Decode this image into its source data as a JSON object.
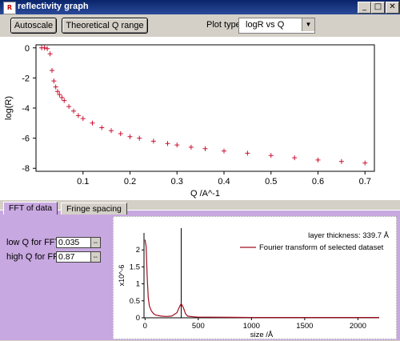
{
  "window": {
    "title": "reflectivity graph",
    "icon": "app-icon",
    "buttons": [
      "_",
      "□",
      "✕"
    ]
  },
  "toolbar": {
    "autoscale_label": "Autoscale",
    "theoretical_label": "Theoretical Q range",
    "plot_type_label": "Plot type",
    "plot_type_value": "logR vs Q"
  },
  "tabs": [
    {
      "label": "FFT of data",
      "selected": true
    },
    {
      "label": "Fringe spacing",
      "selected": false
    }
  ],
  "fft_controls": {
    "low_q_label": "low Q for FFT",
    "low_q_value": "0.035",
    "high_q_label": "high Q for FFT",
    "high_q_value": "0.87"
  },
  "colors": {
    "data": "#cc1030",
    "accent_tab": "#c8a8e0",
    "titlebar": "#0a246a"
  },
  "chart_data": [
    {
      "type": "scatter",
      "title": "",
      "xlabel": "Q /A^-1",
      "ylabel": "log(R)",
      "xlim": [
        0.0,
        0.72
      ],
      "ylim": [
        -8.2,
        0.2
      ],
      "x_ticks": [
        "0.1",
        "0.2",
        "0.3",
        "0.4",
        "0.5",
        "0.6",
        "0.7"
      ],
      "y_ticks": [
        "0",
        "-2",
        "-4",
        "-6",
        "-8"
      ],
      "marker": "+",
      "series": [
        {
          "x": [
            0.012,
            0.018,
            0.024,
            0.03,
            0.034,
            0.038,
            0.042,
            0.046,
            0.05,
            0.055,
            0.06,
            0.07,
            0.08,
            0.09,
            0.1,
            0.12,
            0.14,
            0.16,
            0.18,
            0.2,
            0.22,
            0.25,
            0.28,
            0.3,
            0.33,
            0.36,
            0.4,
            0.45,
            0.5,
            0.55,
            0.6,
            0.65,
            0.7
          ],
          "y": [
            0.0,
            0.0,
            -0.05,
            -0.4,
            -1.5,
            -2.2,
            -2.6,
            -2.9,
            -3.1,
            -3.3,
            -3.5,
            -3.9,
            -4.2,
            -4.5,
            -4.7,
            -5.0,
            -5.3,
            -5.5,
            -5.7,
            -5.9,
            -6.0,
            -6.2,
            -6.35,
            -6.45,
            -6.6,
            -6.7,
            -6.85,
            -7.0,
            -7.15,
            -7.3,
            -7.45,
            -7.55,
            -7.65
          ]
        }
      ]
    },
    {
      "type": "line",
      "xlabel": "size /Å",
      "ylabel": "x10^-6",
      "annotation": "layer thickness: 339.7 Å",
      "xlim": [
        -10,
        2200
      ],
      "ylim": [
        0,
        2.5
      ],
      "x_ticks": [
        "0",
        "500",
        "1000",
        "1500",
        "2000"
      ],
      "y_ticks": [
        "0",
        "0.5",
        "1",
        "1.5",
        "2"
      ],
      "legend": "top-right",
      "marker_line_x": 339.7,
      "series": [
        {
          "name": "Fourier transform of selected dataset",
          "x": [
            0,
            10,
            20,
            30,
            40,
            60,
            80,
            100,
            150,
            200,
            250,
            300,
            320,
            339.7,
            360,
            380,
            400,
            450,
            500,
            600,
            800,
            1000,
            1500,
            2000,
            2200
          ],
          "y": [
            2.3,
            2.1,
            1.2,
            0.6,
            0.35,
            0.2,
            0.12,
            0.08,
            0.05,
            0.04,
            0.05,
            0.15,
            0.3,
            0.42,
            0.3,
            0.12,
            0.05,
            0.03,
            0.02,
            0.02,
            0.015,
            0.01,
            0.01,
            0.01,
            0.01
          ]
        }
      ]
    }
  ]
}
